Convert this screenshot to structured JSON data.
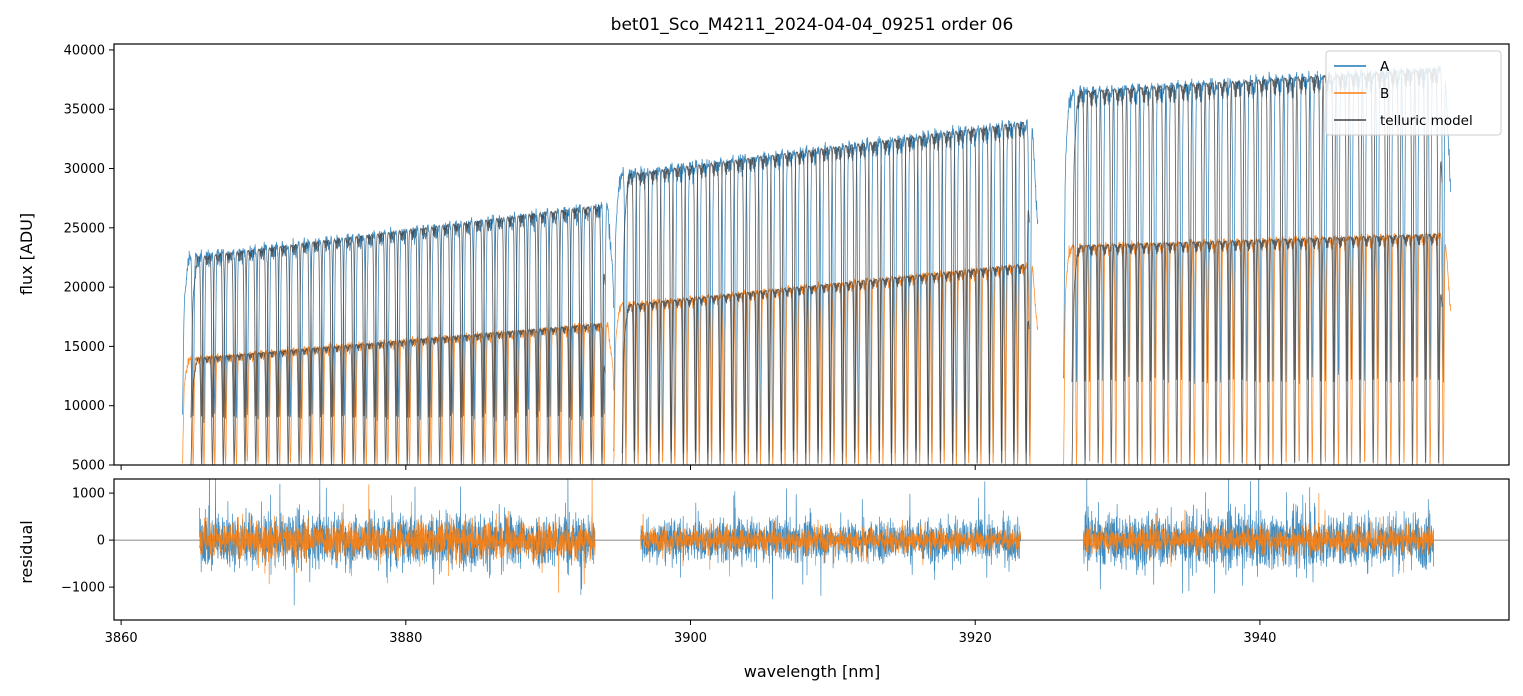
{
  "chart_data": [
    {
      "type": "line",
      "title": "bet01_Sco_M4211_2024-04-04_09251  order 06",
      "xlabel": "",
      "ylabel": "flux [ADU]",
      "xlim": [
        3859.5,
        3957.5
      ],
      "ylim": [
        5000,
        40500
      ],
      "yticks": [
        5000,
        10000,
        15000,
        20000,
        25000,
        30000,
        35000,
        40000
      ],
      "yticklabels": [
        "5000",
        "10000",
        "15000",
        "20000",
        "25000",
        "30000",
        "35000",
        "40000"
      ],
      "xticks": [
        3860,
        3880,
        3900,
        3920,
        3940
      ],
      "legend_position": "upper-right",
      "series": [
        {
          "name": "A",
          "color": "#1f77b4",
          "segments": [
            {
              "x_start": 3864.3,
              "x_end": 3894.6,
              "cont_start": 22500,
              "cont_end": 27000,
              "line_depth_min": 9000
            },
            {
              "x_start": 3894.6,
              "x_end": 3924.4,
              "cont_start": 29500,
              "cont_end": 34000,
              "line_depth_min": 6000
            },
            {
              "x_start": 3926.2,
              "x_end": 3953.4,
              "cont_start": 36500,
              "cont_end": 38500,
              "line_depth_min": 12000
            }
          ]
        },
        {
          "name": "B",
          "color": "#ff7f0e",
          "segments": [
            {
              "x_start": 3864.3,
              "x_end": 3894.6,
              "cont_start": 14000,
              "cont_end": 17000,
              "line_depth_min": 5000
            },
            {
              "x_start": 3894.6,
              "x_end": 3924.4,
              "cont_start": 18500,
              "cont_end": 22000,
              "line_depth_min": 5000
            },
            {
              "x_start": 3926.2,
              "x_end": 3953.4,
              "cont_start": 23500,
              "cont_end": 24500,
              "line_depth_min": 5000
            }
          ]
        },
        {
          "name": "telluric model",
          "color": "#404040"
        }
      ]
    },
    {
      "type": "line",
      "title": "",
      "xlabel": "wavelength [nm]",
      "ylabel": "residual",
      "xlim": [
        3859.5,
        3957.5
      ],
      "ylim": [
        -1700,
        1300
      ],
      "yticks": [
        -1000,
        0,
        1000
      ],
      "yticklabels": [
        "−1000",
        "0",
        "1000"
      ],
      "xticks": [
        3860,
        3880,
        3900,
        3920,
        3940
      ],
      "xticklabels": [
        "3860",
        "3880",
        "3900",
        "3920",
        "3940"
      ],
      "zero_line": 0,
      "series": [
        {
          "name": "A",
          "color": "#1f77b4",
          "segments": [
            {
              "x_start": 3865.5,
              "x_end": 3893.3,
              "spread": 900
            },
            {
              "x_start": 3896.5,
              "x_end": 3923.2,
              "spread": 700
            },
            {
              "x_start": 3927.6,
              "x_end": 3952.2,
              "spread": 900
            }
          ]
        },
        {
          "name": "B",
          "color": "#ff7f0e",
          "segments": [
            {
              "x_start": 3865.5,
              "x_end": 3893.3,
              "spread": 600
            },
            {
              "x_start": 3896.5,
              "x_end": 3923.2,
              "spread": 400
            },
            {
              "x_start": 3927.6,
              "x_end": 3952.2,
              "spread": 450
            }
          ]
        }
      ]
    }
  ]
}
